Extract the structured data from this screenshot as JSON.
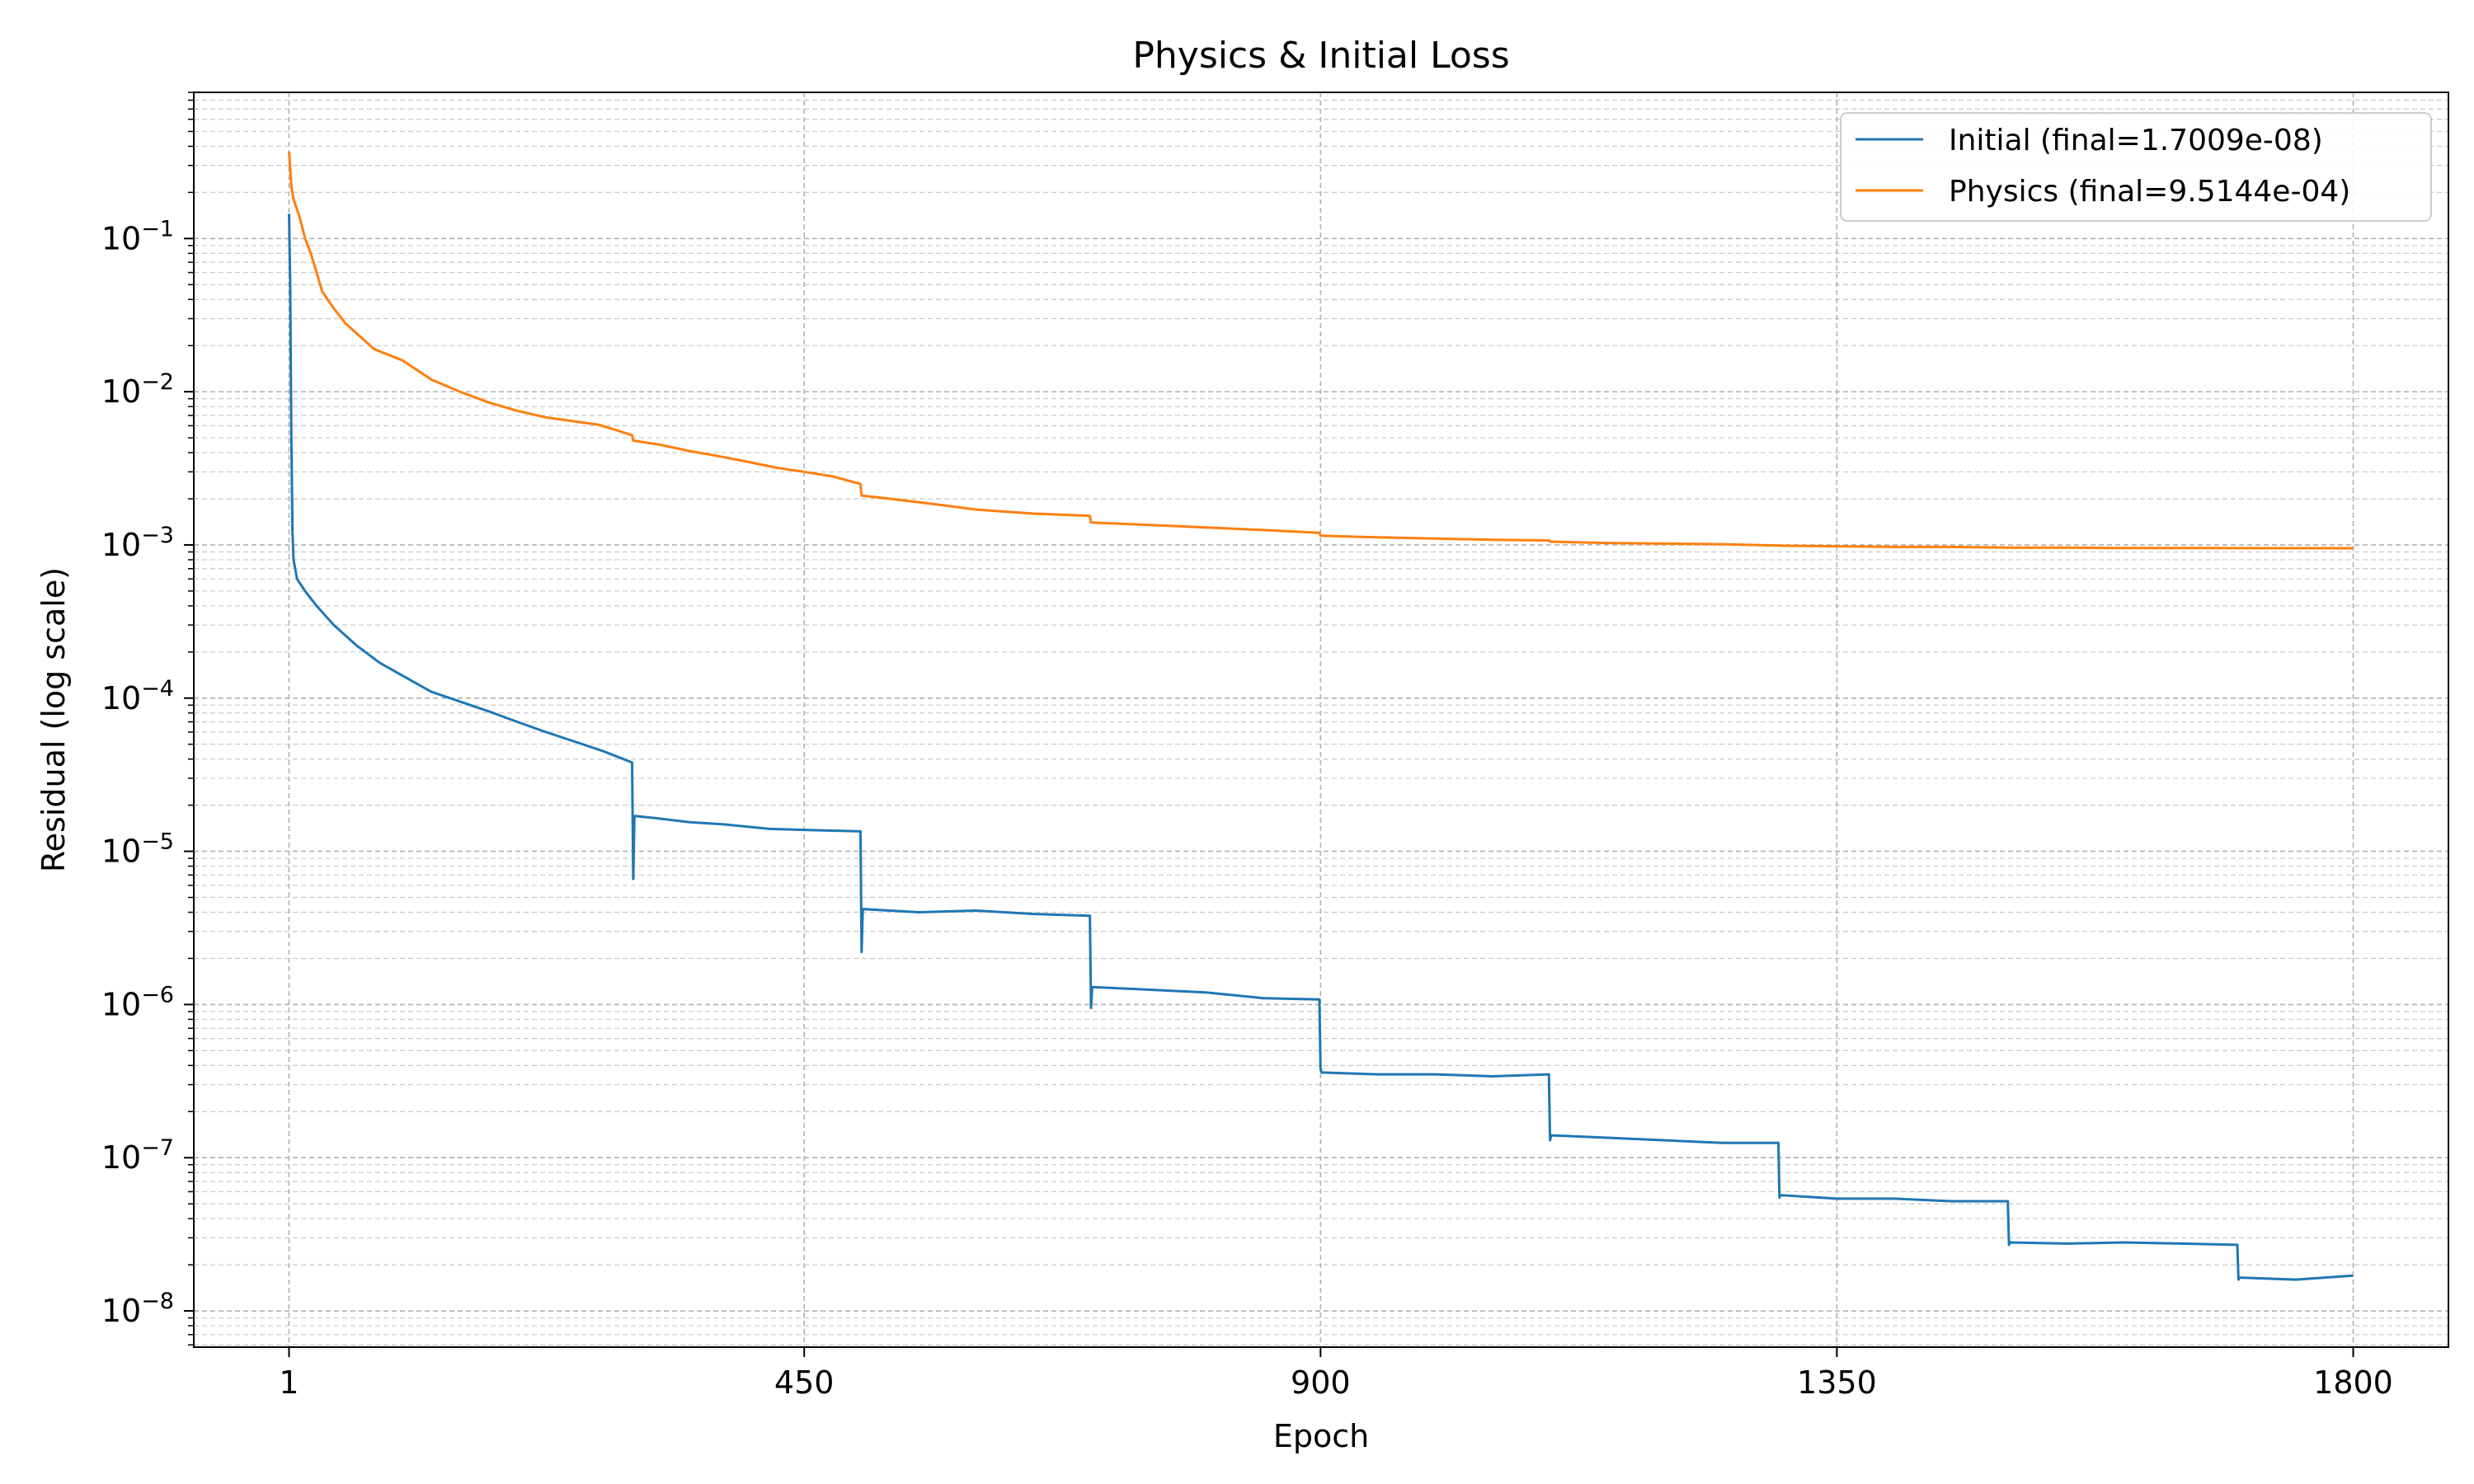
{
  "chart_data": {
    "type": "line",
    "title": "Physics & Initial Loss",
    "xlabel": "Epoch",
    "ylabel": "Residual (log scale)",
    "yscale": "log",
    "xlim": [
      -82,
      1883
    ],
    "ylim": [
      5.8e-09,
      0.9
    ],
    "grid": "both (major and minor, dashed)",
    "legend_position": "top-right",
    "x_ticks": [
      {
        "value": 1,
        "label": "1"
      },
      {
        "value": 450,
        "label": "450"
      },
      {
        "value": 900,
        "label": "900"
      },
      {
        "value": 1350,
        "label": "1350"
      },
      {
        "value": 1800,
        "label": "1800"
      }
    ],
    "y_ticks": [
      {
        "exp": -1,
        "base": "10",
        "sup": "−1"
      },
      {
        "exp": -2,
        "base": "10",
        "sup": "−2"
      },
      {
        "exp": -3,
        "base": "10",
        "sup": "−3"
      },
      {
        "exp": -4,
        "base": "10",
        "sup": "−4"
      },
      {
        "exp": -5,
        "base": "10",
        "sup": "−5"
      },
      {
        "exp": -6,
        "base": "10",
        "sup": "−6"
      },
      {
        "exp": -7,
        "base": "10",
        "sup": "−7"
      },
      {
        "exp": -8,
        "base": "10",
        "sup": "−8"
      }
    ],
    "series": [
      {
        "name": "Initial (final=1.7009e-08)",
        "color": "#1f77b4",
        "points": [
          [
            1,
            0.145
          ],
          [
            2,
            0.05
          ],
          [
            3,
            0.005
          ],
          [
            4,
            0.0012
          ],
          [
            5,
            0.0008
          ],
          [
            8,
            0.0006
          ],
          [
            15,
            0.0005
          ],
          [
            25,
            0.0004
          ],
          [
            40,
            0.0003
          ],
          [
            60,
            0.00022
          ],
          [
            80,
            0.00017
          ],
          [
            100,
            0.00014
          ],
          [
            125,
            0.00011
          ],
          [
            150,
            9.5e-05
          ],
          [
            175,
            8.2e-05
          ],
          [
            200,
            7e-05
          ],
          [
            225,
            6e-05
          ],
          [
            250,
            5.2e-05
          ],
          [
            275,
            4.5e-05
          ],
          [
            300,
            3.8e-05
          ],
          [
            301,
            6.6e-06
          ],
          [
            302,
            1.7e-05
          ],
          [
            320,
            1.65e-05
          ],
          [
            350,
            1.55e-05
          ],
          [
            380,
            1.5e-05
          ],
          [
            420,
            1.4e-05
          ],
          [
            450,
            1.38e-05
          ],
          [
            499,
            1.35e-05
          ],
          [
            500,
            2.2e-06
          ],
          [
            501,
            4.2e-06
          ],
          [
            550,
            4e-06
          ],
          [
            600,
            4.1e-06
          ],
          [
            650,
            3.9e-06
          ],
          [
            699,
            3.8e-06
          ],
          [
            700,
            9.5e-07
          ],
          [
            701,
            1.3e-06
          ],
          [
            750,
            1.25e-06
          ],
          [
            800,
            1.2e-06
          ],
          [
            850,
            1.1e-06
          ],
          [
            899,
            1.08e-06
          ],
          [
            900,
            3.8e-07
          ],
          [
            901,
            3.6e-07
          ],
          [
            950,
            3.5e-07
          ],
          [
            1000,
            3.5e-07
          ],
          [
            1050,
            3.4e-07
          ],
          [
            1099,
            3.5e-07
          ],
          [
            1100,
            1.3e-07
          ],
          [
            1101,
            1.4e-07
          ],
          [
            1150,
            1.35e-07
          ],
          [
            1200,
            1.3e-07
          ],
          [
            1250,
            1.25e-07
          ],
          [
            1299,
            1.25e-07
          ],
          [
            1300,
            5.5e-08
          ],
          [
            1301,
            5.7e-08
          ],
          [
            1350,
            5.4e-08
          ],
          [
            1400,
            5.4e-08
          ],
          [
            1450,
            5.2e-08
          ],
          [
            1499,
            5.2e-08
          ],
          [
            1500,
            2.7e-08
          ],
          [
            1501,
            2.8e-08
          ],
          [
            1550,
            2.75e-08
          ],
          [
            1600,
            2.8e-08
          ],
          [
            1650,
            2.75e-08
          ],
          [
            1699,
            2.7e-08
          ],
          [
            1700,
            1.6e-08
          ],
          [
            1701,
            1.65e-08
          ],
          [
            1750,
            1.6e-08
          ],
          [
            1800,
            1.7009e-08
          ]
        ]
      },
      {
        "name": "Physics (final=9.5144e-04)",
        "color": "#ff7f0e",
        "points": [
          [
            1,
            0.37
          ],
          [
            3,
            0.22
          ],
          [
            5,
            0.18
          ],
          [
            10,
            0.14
          ],
          [
            15,
            0.1
          ],
          [
            20,
            0.08
          ],
          [
            25,
            0.06
          ],
          [
            30,
            0.045
          ],
          [
            40,
            0.035
          ],
          [
            50,
            0.028
          ],
          [
            60,
            0.024
          ],
          [
            75,
            0.019
          ],
          [
            100,
            0.016
          ],
          [
            125,
            0.012
          ],
          [
            150,
            0.01
          ],
          [
            175,
            0.0085
          ],
          [
            200,
            0.0075
          ],
          [
            225,
            0.0068
          ],
          [
            250,
            0.0064
          ],
          [
            270,
            0.0061
          ],
          [
            280,
            0.0058
          ],
          [
            290,
            0.0055
          ],
          [
            300,
            0.0052
          ],
          [
            301,
            0.0048
          ],
          [
            325,
            0.0045
          ],
          [
            350,
            0.0041
          ],
          [
            375,
            0.0038
          ],
          [
            400,
            0.0035
          ],
          [
            425,
            0.0032
          ],
          [
            450,
            0.003
          ],
          [
            475,
            0.0028
          ],
          [
            499,
            0.0025
          ],
          [
            500,
            0.0021
          ],
          [
            525,
            0.002
          ],
          [
            550,
            0.0019
          ],
          [
            575,
            0.0018
          ],
          [
            600,
            0.0017
          ],
          [
            650,
            0.0016
          ],
          [
            699,
            0.00155
          ],
          [
            700,
            0.0014
          ],
          [
            750,
            0.00135
          ],
          [
            800,
            0.0013
          ],
          [
            850,
            0.00125
          ],
          [
            899,
            0.0012
          ],
          [
            900,
            0.00115
          ],
          [
            950,
            0.00112
          ],
          [
            1000,
            0.0011
          ],
          [
            1050,
            0.00108
          ],
          [
            1099,
            0.00107
          ],
          [
            1100,
            0.00105
          ],
          [
            1150,
            0.00103
          ],
          [
            1200,
            0.00102
          ],
          [
            1250,
            0.00101
          ],
          [
            1300,
            0.00099
          ],
          [
            1350,
            0.00098
          ],
          [
            1400,
            0.00097
          ],
          [
            1450,
            0.00097
          ],
          [
            1500,
            0.00096
          ],
          [
            1550,
            0.00096
          ],
          [
            1600,
            0.000955
          ],
          [
            1650,
            0.000955
          ],
          [
            1700,
            0.000952
          ],
          [
            1750,
            0.000952
          ],
          [
            1800,
            0.00095144
          ]
        ]
      }
    ]
  }
}
